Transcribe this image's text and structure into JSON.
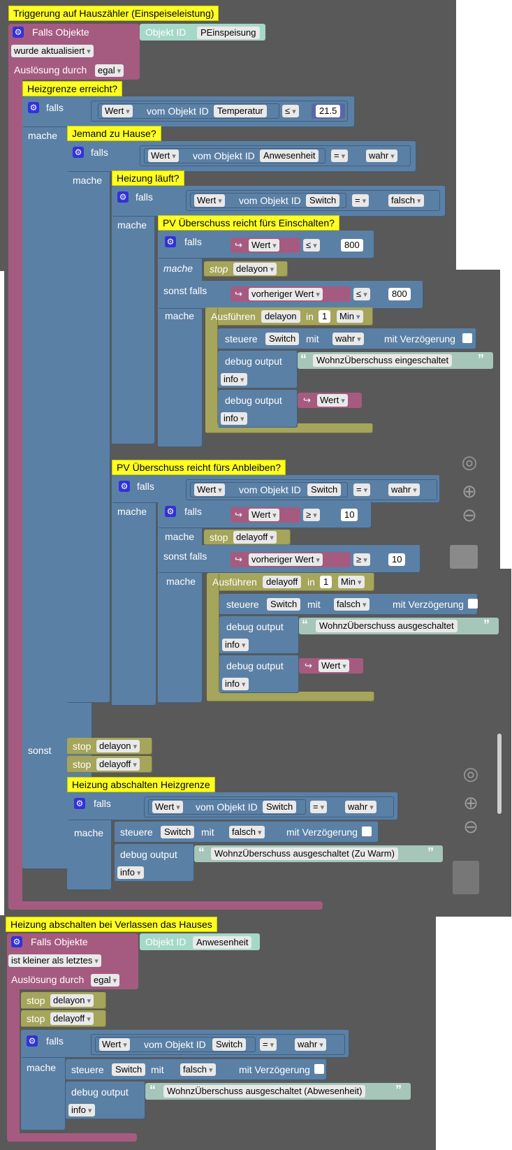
{
  "program1": {
    "title": "Triggerung auf Hauszähler (Einspeiseleistung)",
    "trigger_label": "Falls Objekte",
    "object_id_label": "Objekt ID",
    "object_id": "PEinspeisung",
    "trigger_mode": "wurde aktualisiert",
    "cause_label": "Auslösung durch",
    "cause_value": "egal",
    "heizgrenze": {
      "title": "Heizgrenze erreicht?",
      "if_label": "falls",
      "do_label": "mache",
      "cond_value": "Wert",
      "cond_from": "vom Objekt ID",
      "cond_obj": "Temperatur",
      "cond_op": "≤",
      "cond_num": "21.5"
    },
    "home": {
      "title": "Jemand zu Hause?",
      "if_label": "falls",
      "do_label": "mache",
      "cond_value": "Wert",
      "cond_from": "vom Objekt ID",
      "cond_obj": "Anwesenheit",
      "cond_op": "=",
      "cond_val": "wahr"
    },
    "heating": {
      "title": "Heizung läuft?",
      "if_label": "falls",
      "do_label": "mache",
      "cond_value": "Wert",
      "cond_from": "vom Objekt ID",
      "cond_obj": "Switch",
      "cond_op": "=",
      "cond_val": "falsch"
    },
    "pv_on": {
      "title": "PV Überschuss reicht fürs Einschalten?",
      "if_label": "falls",
      "var1": "Wert",
      "op1": "≤",
      "num1": "800",
      "do_label": "mache",
      "stop_label": "stop",
      "stop_timer": "delayon",
      "elseif_label": "sonst falls",
      "var2": "vorheriger Wert",
      "op2": "≤",
      "num2": "800",
      "do2_label": "mache",
      "exec_label": "Ausführen",
      "exec_timer": "delayon",
      "in_label": "in",
      "in_num": "1",
      "in_unit": "Min",
      "control_label": "steuere",
      "control_obj": "Switch",
      "with_label": "mit",
      "control_val": "wahr",
      "delay_label": "mit Verzögerung",
      "debug_label": "debug output",
      "debug_text": "WohnzÜberschuss eingeschaltet",
      "debug_level": "info",
      "debug2_label": "debug output",
      "debug2_var": "Wert",
      "debug2_level": "info"
    },
    "pv_stay": {
      "title": "PV Überschuss reicht fürs Anbleiben?",
      "if_label": "falls",
      "cond_value": "Wert",
      "cond_from": "vom Objekt ID",
      "cond_obj": "Switch",
      "cond_op": "=",
      "cond_val": "wahr",
      "do_label": "mache",
      "inner_if": "falls",
      "var1": "Wert",
      "op1": "≥",
      "num1": "10",
      "inner_do": "mache",
      "stop_label": "stop",
      "stop_timer": "delayoff",
      "elseif_label": "sonst falls",
      "var2": "vorheriger Wert",
      "op2": "≥",
      "num2": "10",
      "do2_label": "mache",
      "exec_label": "Ausführen",
      "exec_timer": "delayoff",
      "in_label": "in",
      "in_num": "1",
      "in_unit": "Min",
      "control_label": "steuere",
      "control_obj": "Switch",
      "with_label": "mit",
      "control_val": "falsch",
      "delay_label": "mit Verzögerung",
      "debug_label": "debug output",
      "debug_text": "WohnzÜberschuss ausgeschaltet",
      "debug_level": "info",
      "debug2_label": "debug output",
      "debug2_var": "Wert",
      "debug2_level": "info"
    },
    "else_branch": {
      "else_label": "sonst",
      "stop1_label": "stop",
      "stop1_timer": "delayon",
      "stop2_label": "stop",
      "stop2_timer": "delayoff",
      "title": "Heizung abschalten Heizgrenze",
      "if_label": "falls",
      "cond_value": "Wert",
      "cond_from": "vom Objekt ID",
      "cond_obj": "Switch",
      "cond_op": "=",
      "cond_val": "wahr",
      "do_label": "mache",
      "control_label": "steuere",
      "control_obj": "Switch",
      "with_label": "mit",
      "control_val": "falsch",
      "delay_label": "mit Verzögerung",
      "debug_label": "debug output",
      "debug_text": "WohnzÜberschuss ausgeschaltet (Zu Warm)",
      "debug_level": "info"
    }
  },
  "program2": {
    "title": "Heizung abschalten bei Verlassen das Hauses",
    "trigger_label": "Falls Objekte",
    "object_id_label": "Objekt ID",
    "object_id": "Anwesenheit",
    "trigger_mode": "ist kleiner als letztes",
    "cause_label": "Auslösung durch",
    "cause_value": "egal",
    "stop1_label": "stop",
    "stop1_timer": "delayon",
    "stop2_label": "stop",
    "stop2_timer": "delayoff",
    "if_label": "falls",
    "cond_value": "Wert",
    "cond_from": "vom Objekt ID",
    "cond_obj": "Switch",
    "cond_op": "=",
    "cond_val": "wahr",
    "do_label": "mache",
    "control_label": "steuere",
    "control_obj": "Switch",
    "with_label": "mit",
    "control_val": "falsch",
    "delay_label": "mit Verzögerung",
    "debug_label": "debug output",
    "debug_text": "WohnzÜberschuss ausgeschaltet (Abwesenheit)",
    "debug_level": "info"
  },
  "colors": {
    "workspace": "#595959",
    "event_block": "#a55b80",
    "logic_block": "#5b80a5",
    "timer_block": "#a5a55b",
    "comment": "#ffff22"
  }
}
